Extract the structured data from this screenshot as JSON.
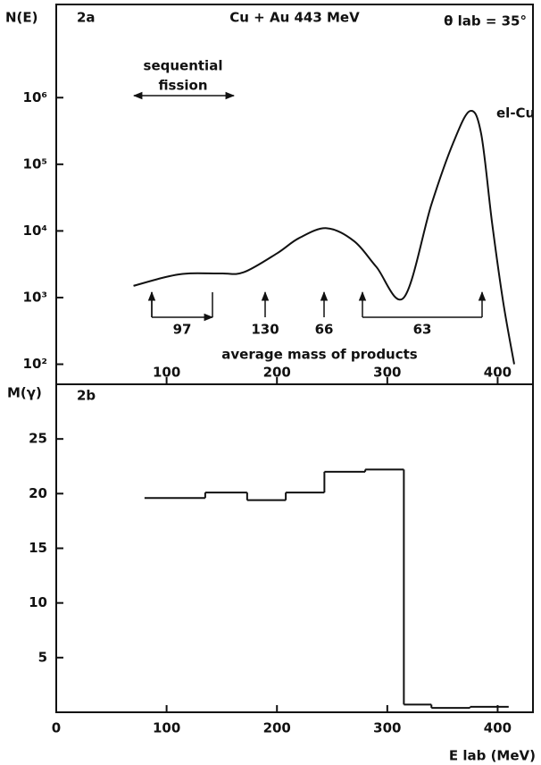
{
  "chart_data": [
    {
      "type": "line",
      "panel_label": "2a",
      "title": "Cu + Au   443 MeV",
      "subtitle": "θ lab = 35°",
      "ylabel": "N(E)",
      "log_y": true,
      "color": "#111111",
      "x": [
        70,
        100,
        120,
        150,
        170,
        200,
        220,
        245,
        270,
        290,
        315,
        340,
        360,
        375,
        385,
        395,
        405,
        415
      ],
      "values": [
        1500,
        2050,
        2300,
        2300,
        2400,
        4600,
        7800,
        11000,
        7000,
        2900,
        1000,
        25000,
        215000,
        630000,
        290000,
        13000,
        860,
        100
      ],
      "xlim": [
        0,
        432
      ],
      "xticks": [
        100,
        200,
        300,
        400
      ],
      "ylim": [
        50,
        25000000
      ],
      "yticks": [
        {
          "value": 100,
          "label": "10²"
        },
        {
          "value": 1000,
          "label": "10³"
        },
        {
          "value": 10000,
          "label": "10⁴"
        },
        {
          "value": 100000,
          "label": "10⁵"
        },
        {
          "value": 1000000,
          "label": "10⁶"
        }
      ],
      "annotations": {
        "sequential": "sequential",
        "fission": "fission",
        "peak": "el-Cu",
        "masses": [
          "97",
          "130",
          "66",
          "63"
        ],
        "mass_caption": "average mass of products"
      }
    },
    {
      "type": "histogram",
      "panel_label": "2b",
      "ylabel": "M(γ)",
      "xlabel": "E lab (MeV)",
      "color": "#111111",
      "bins": [
        80,
        135,
        173,
        208,
        243,
        280,
        315,
        340,
        375,
        410
      ],
      "values": [
        19.6,
        20.1,
        19.4,
        20.1,
        22.0,
        22.2,
        0.7,
        0.4,
        0.5
      ],
      "xlim": [
        0,
        432
      ],
      "xticks": [
        0,
        100,
        200,
        300,
        400
      ],
      "ylim": [
        0,
        30
      ],
      "yticks": [
        5,
        10,
        15,
        20,
        25
      ]
    }
  ]
}
